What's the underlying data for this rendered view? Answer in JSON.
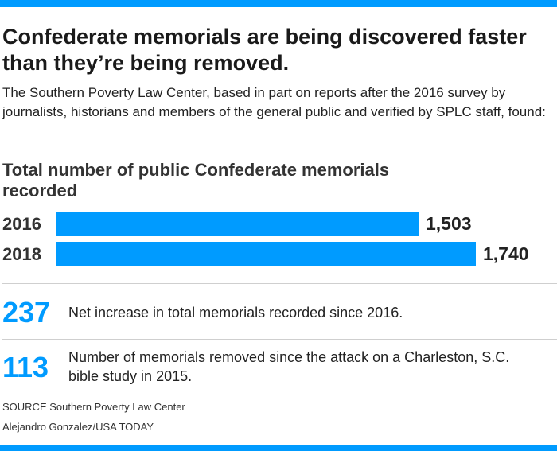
{
  "headline": "Confederate memorials are being discovered faster than they’re being removed.",
  "intro": "The Southern Poverty Law Center, based in part on reports after the 2016 survey by journalists, historians and members of the general public and verified by SPLC staff, found:",
  "chart_data": {
    "type": "bar",
    "orientation": "horizontal",
    "title": "Total number of public Confederate memorials recorded",
    "categories": [
      "2016",
      "2018"
    ],
    "values": [
      1503,
      1740
    ],
    "value_labels": [
      "1,503",
      "1,740"
    ],
    "bar_color": "#009bff",
    "xlim": [
      0,
      1740
    ],
    "grid": false,
    "xlabel": "",
    "ylabel": ""
  },
  "stats": [
    {
      "number": "237",
      "text": "Net increase in total memorials recorded since 2016."
    },
    {
      "number": "113",
      "text": "Number of memorials removed since the attack on a Charleston, S.C. bible study in 2015."
    }
  ],
  "footer": {
    "source": "SOURCE Southern Poverty Law Center",
    "credit": "Alejandro Gonzalez/USA TODAY"
  },
  "colors": {
    "accent": "#009bff"
  }
}
